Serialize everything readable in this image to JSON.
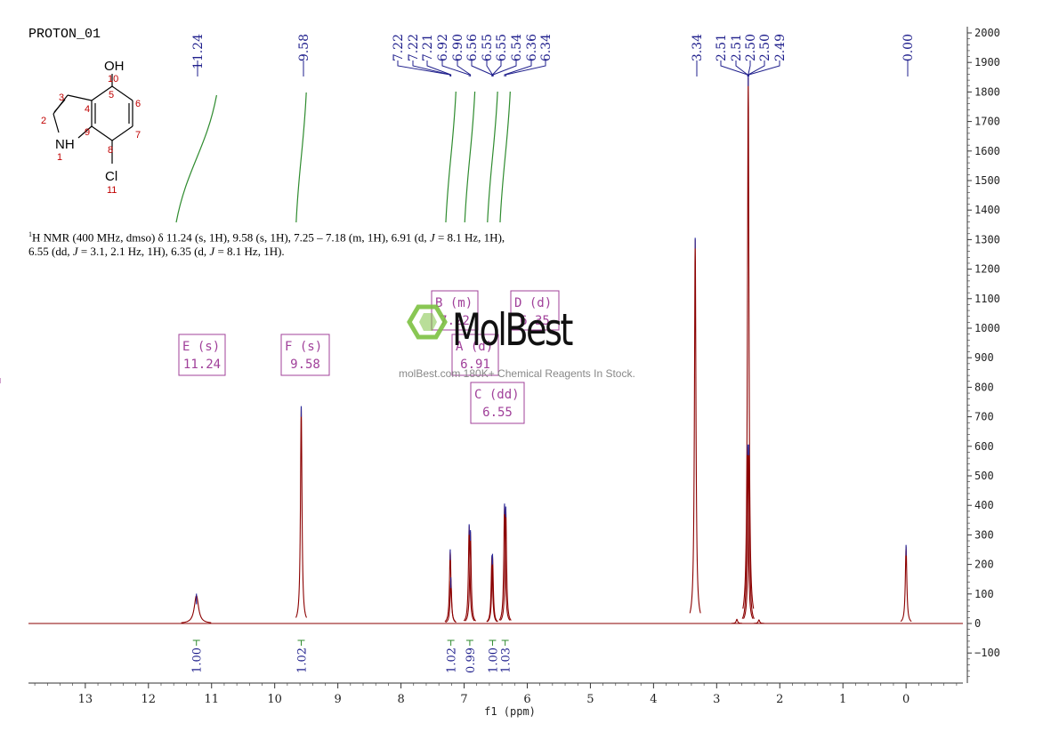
{
  "title": "PROTON_01",
  "summary": {
    "sup": "1",
    "text_a": "H NMR (400 MHz, dmso) δ 11.24 (s, 1H), 9.58 (s, 1H), 7.25 – 7.18 (m, 1H), 6.91 (d, ",
    "j1": "J",
    "text_b": " = 8.1 Hz, 1H), 6.55 (dd, ",
    "j2": "J",
    "text_c": " = 3.1, 2.1 Hz, 1H), 6.35 (d, ",
    "j3": "J",
    "text_d": " = 8.1 Hz, 1H)."
  },
  "watermark": {
    "brand": "MolBest",
    "tagline": "molBest.com 180K+ Chemical Reagents In Stock.",
    "color": "#7dc242"
  },
  "molecule": {
    "atoms": [
      "OH",
      "10",
      "5",
      "3",
      "4",
      "6",
      "2",
      "9",
      "7",
      "NH",
      "8",
      "1",
      "Cl",
      "11"
    ]
  },
  "colors": {
    "spectrum": "#8b0000",
    "peak_labels": "#1f1f8c",
    "integral": "#2e8b2e",
    "multiplet_box": "#a0409a",
    "axis": "#333333"
  },
  "chart_data": {
    "type": "line",
    "xlabel": "f1 (ppm)",
    "ylabel": "",
    "xlim": [
      13.9,
      -0.9
    ],
    "ylim": [
      -200,
      2000
    ],
    "x_ticks": [
      13,
      12,
      11,
      10,
      9,
      8,
      7,
      6,
      5,
      4,
      3,
      2,
      1,
      0
    ],
    "y_ticks": [
      2000,
      1900,
      1800,
      1700,
      1600,
      1500,
      1400,
      1300,
      1200,
      1100,
      1000,
      900,
      800,
      700,
      600,
      500,
      400,
      300,
      200,
      100,
      0,
      -100
    ],
    "peaks": [
      {
        "ppm": 11.24,
        "height": 95,
        "width": 0.04
      },
      {
        "ppm": 9.58,
        "height": 730,
        "width": 0.008
      },
      {
        "ppm": 7.22,
        "height": 245,
        "width": 0.006
      },
      {
        "ppm": 7.21,
        "height": 150,
        "width": 0.006
      },
      {
        "ppm": 6.92,
        "height": 330,
        "width": 0.006
      },
      {
        "ppm": 6.9,
        "height": 310,
        "width": 0.006
      },
      {
        "ppm": 6.56,
        "height": 225,
        "width": 0.005
      },
      {
        "ppm": 6.55,
        "height": 230,
        "width": 0.005
      },
      {
        "ppm": 6.36,
        "height": 400,
        "width": 0.006
      },
      {
        "ppm": 6.34,
        "height": 390,
        "width": 0.006
      },
      {
        "ppm": 3.34,
        "height": 1300,
        "width": 0.008
      },
      {
        "ppm": 2.5,
        "height": 1850,
        "width": 0.006
      },
      {
        "ppm": 2.51,
        "height": 600,
        "width": 0.005
      },
      {
        "ppm": 2.49,
        "height": 600,
        "width": 0.005
      },
      {
        "ppm": 0.0,
        "height": 260,
        "width": 0.006
      },
      {
        "ppm": 2.68,
        "height": 14,
        "width": 0.01
      },
      {
        "ppm": 2.33,
        "height": 12,
        "width": 0.01
      }
    ],
    "peak_labels": [
      {
        "group": "a",
        "values": [
          "11.24"
        ]
      },
      {
        "group": "b",
        "values": [
          "9.58"
        ]
      },
      {
        "group": "c",
        "values": [
          "7.22",
          "7.22",
          "7.21",
          "6.92",
          "6.90",
          "6.56",
          "6.55",
          "6.55",
          "6.54",
          "6.36",
          "6.34"
        ]
      },
      {
        "group": "d",
        "values": [
          "3.34"
        ]
      },
      {
        "group": "e",
        "values": [
          "2.51",
          "2.51",
          "2.50",
          "2.50",
          "2.49"
        ]
      },
      {
        "group": "f",
        "values": [
          "0.00"
        ]
      }
    ],
    "integrals": [
      {
        "ppm": 11.24,
        "value": "1.00"
      },
      {
        "ppm": 9.58,
        "value": "1.02"
      },
      {
        "ppm": 7.21,
        "value": "1.02"
      },
      {
        "ppm": 6.91,
        "value": "0.99"
      },
      {
        "ppm": 6.55,
        "value": "1.00"
      },
      {
        "ppm": 6.35,
        "value": "1.03"
      }
    ],
    "multiplets": [
      {
        "label": "E (s)",
        "shift": "11.24"
      },
      {
        "label": "F (s)",
        "shift": "9.58"
      },
      {
        "label": "B (m)",
        "shift": "7.22"
      },
      {
        "label": "D (d)",
        "shift": "6.35"
      },
      {
        "label": "A (d)",
        "shift": "6.91"
      },
      {
        "label": "C (dd)",
        "shift": "6.55"
      }
    ]
  }
}
